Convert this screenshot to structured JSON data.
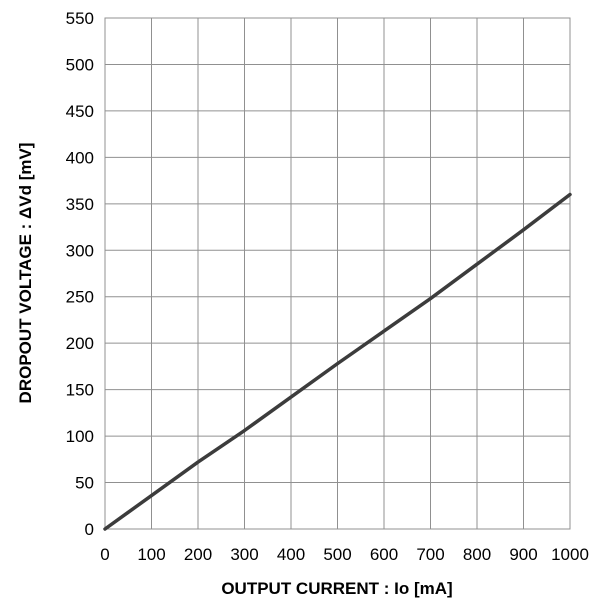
{
  "chart_data": {
    "type": "line",
    "xlabel": "OUTPUT CURRENT : Io [mA]",
    "ylabel": "DROPOUT VOLTAGE : ΔVd [mV]",
    "xlim": [
      0,
      1000
    ],
    "ylim": [
      0,
      550
    ],
    "xticks": [
      0,
      100,
      200,
      300,
      400,
      500,
      600,
      700,
      800,
      900,
      1000
    ],
    "yticks": [
      0,
      50,
      100,
      150,
      200,
      250,
      300,
      350,
      400,
      450,
      500,
      550
    ],
    "grid": true,
    "legend": "none",
    "series": [
      {
        "color": "#3c3c3c",
        "x": [
          0,
          100,
          200,
          300,
          400,
          500,
          600,
          700,
          800,
          900,
          1000
        ],
        "y": [
          0,
          36,
          72,
          106,
          142,
          178,
          213,
          248,
          285,
          322,
          360
        ]
      }
    ],
    "colors": {
      "grid": "#909090",
      "frame": "#909090",
      "line": "#3c3c3c"
    }
  }
}
